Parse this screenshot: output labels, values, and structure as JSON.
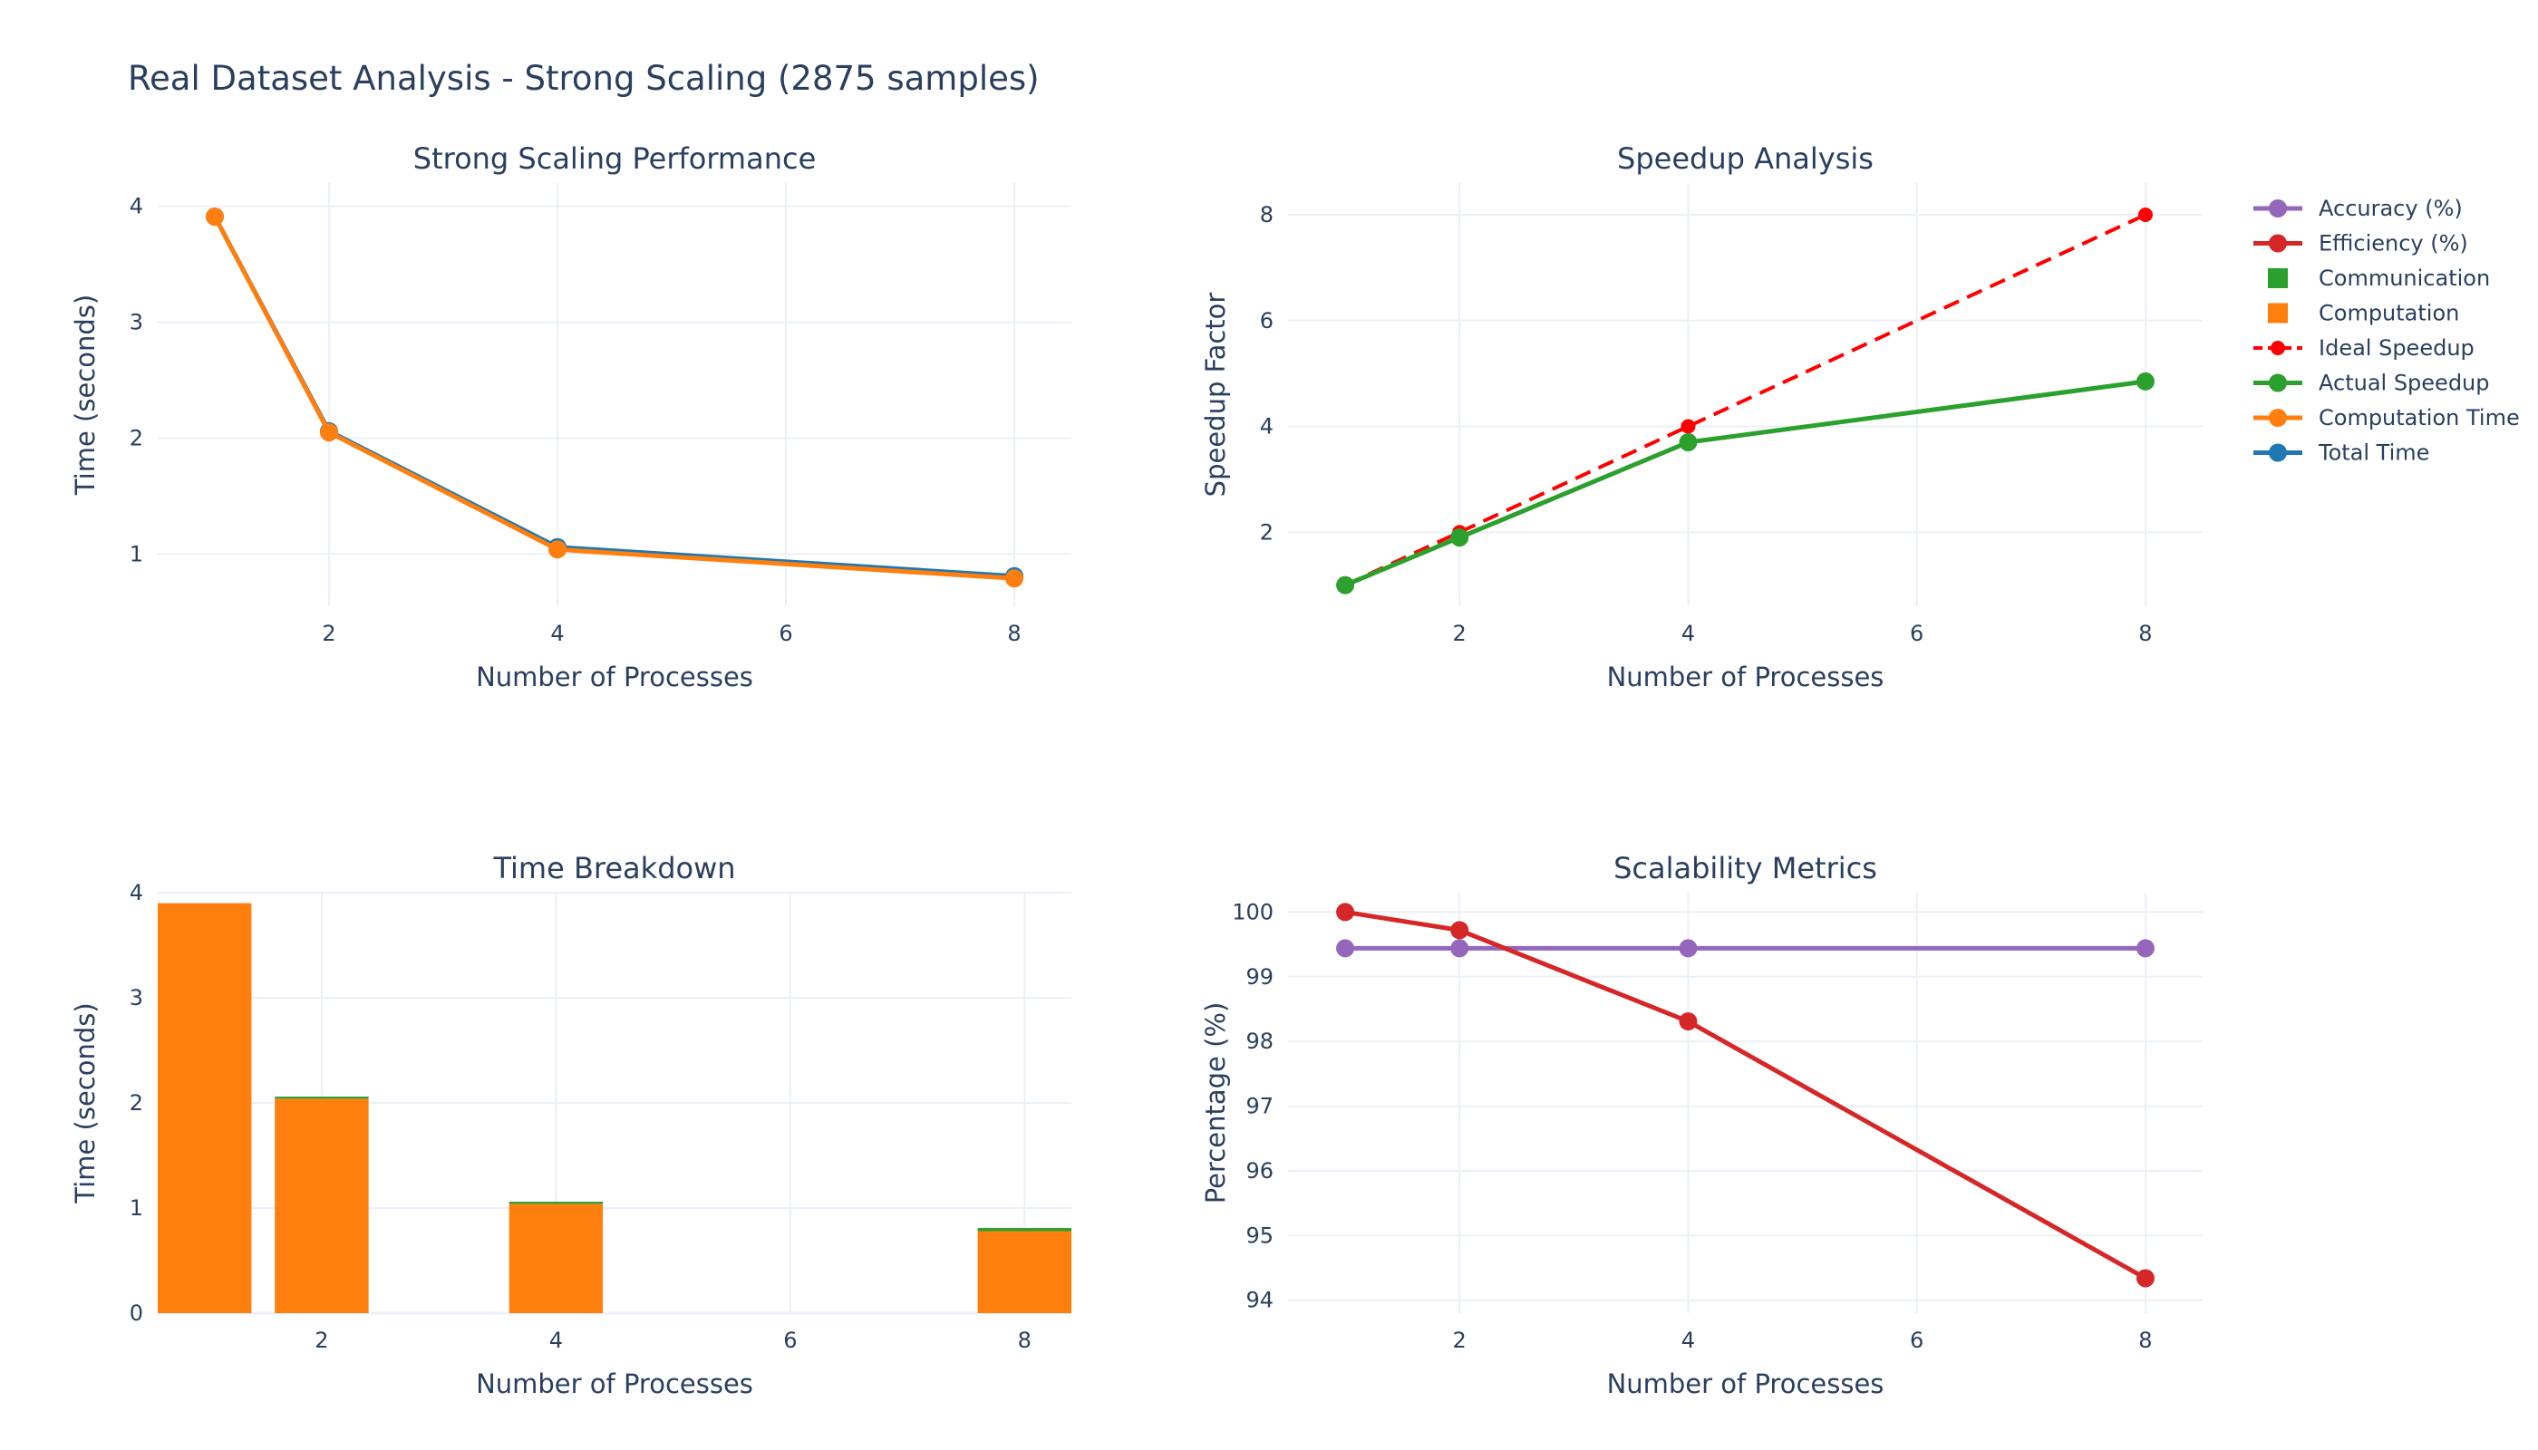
{
  "title": "Real Dataset Analysis - Strong Scaling (2875 samples)",
  "colors": {
    "total": "#1f77b4",
    "computation": "#ff7f0e",
    "actual_speedup": "#2ca02c",
    "ideal_speedup": "#ff0000",
    "efficiency": "#d62728",
    "accuracy": "#9467bd",
    "communication": "#2ca02c",
    "text": "#2a3f5f",
    "grid": "#ebf0f8"
  },
  "legend": {
    "placement": "right",
    "items": [
      {
        "label": "Accuracy (%)",
        "style": "line-marker",
        "color": "#9467bd"
      },
      {
        "label": "Efficiency (%)",
        "style": "line-marker",
        "color": "#d62728"
      },
      {
        "label": "Communication",
        "style": "square",
        "color": "#2ca02c"
      },
      {
        "label": "Computation",
        "style": "square",
        "color": "#ff7f0e"
      },
      {
        "label": "Ideal Speedup",
        "style": "dash-marker",
        "color": "#ff0000"
      },
      {
        "label": "Actual Speedup",
        "style": "line-marker",
        "color": "#2ca02c"
      },
      {
        "label": "Computation Time",
        "style": "line-marker",
        "color": "#ff7f0e"
      },
      {
        "label": "Total Time",
        "style": "line-marker",
        "color": "#1f77b4"
      }
    ]
  },
  "chart_data": [
    {
      "id": "strong-scaling",
      "type": "line",
      "title": "Strong Scaling Performance",
      "xlabel": "Number of Processes",
      "ylabel": "Time (seconds)",
      "x": [
        1,
        2,
        4,
        8
      ],
      "xlim": [
        0.5,
        8.5
      ],
      "ylim": [
        0.55,
        4.2
      ],
      "xticks": [
        2,
        4,
        6,
        8
      ],
      "yticks": [
        1,
        2,
        3,
        4
      ],
      "grid": true,
      "series": [
        {
          "name": "Total Time",
          "values": [
            3.91,
            2.06,
            1.06,
            0.81
          ],
          "color": "#1f77b4",
          "dash": false
        },
        {
          "name": "Computation Time",
          "values": [
            3.91,
            2.05,
            1.04,
            0.79
          ],
          "color": "#ff7f0e",
          "dash": false
        }
      ]
    },
    {
      "id": "speedup",
      "type": "line",
      "title": "Speedup Analysis",
      "xlabel": "Number of Processes",
      "ylabel": "Speedup Factor",
      "x": [
        1,
        2,
        4,
        8
      ],
      "xlim": [
        0.5,
        8.5
      ],
      "ylim": [
        0.6,
        8.6
      ],
      "xticks": [
        2,
        4,
        6,
        8
      ],
      "yticks": [
        2,
        4,
        6,
        8
      ],
      "grid": true,
      "series": [
        {
          "name": "Ideal Speedup",
          "values": [
            1,
            2,
            4,
            8
          ],
          "color": "#ff0000",
          "dash": true
        },
        {
          "name": "Actual Speedup",
          "values": [
            1.0,
            1.9,
            3.7,
            4.85
          ],
          "color": "#2ca02c",
          "dash": false
        }
      ]
    },
    {
      "id": "time-breakdown",
      "type": "bar",
      "stacked": true,
      "title": "Time Breakdown",
      "xlabel": "Number of Processes",
      "ylabel": "Time (seconds)",
      "x": [
        1,
        2,
        4,
        8
      ],
      "xlim": [
        0.6,
        8.4
      ],
      "ylim": [
        0,
        4
      ],
      "xticks": [
        2,
        4,
        6,
        8
      ],
      "yticks": [
        0,
        1,
        2,
        3,
        4
      ],
      "grid": true,
      "series": [
        {
          "name": "Computation",
          "values": [
            3.9,
            2.04,
            1.04,
            0.78
          ],
          "color": "#ff7f0e"
        },
        {
          "name": "Communication",
          "values": [
            0.0,
            0.02,
            0.02,
            0.03
          ],
          "color": "#2ca02c"
        }
      ]
    },
    {
      "id": "scalability",
      "type": "line",
      "title": "Scalability Metrics",
      "xlabel": "Number of Processes",
      "ylabel": "Percentage (%)",
      "x": [
        1,
        2,
        4,
        8
      ],
      "xlim": [
        0.5,
        8.5
      ],
      "ylim": [
        93.8,
        100.3
      ],
      "xticks": [
        2,
        4,
        6,
        8
      ],
      "yticks": [
        94,
        95,
        96,
        97,
        98,
        99,
        100
      ],
      "grid": true,
      "series": [
        {
          "name": "Accuracy (%)",
          "values": [
            99.44,
            99.44,
            99.44,
            99.44
          ],
          "color": "#9467bd",
          "dash": false
        },
        {
          "name": "Efficiency (%)",
          "values": [
            100.0,
            99.72,
            98.31,
            94.34
          ],
          "color": "#d62728",
          "dash": false
        }
      ]
    }
  ]
}
